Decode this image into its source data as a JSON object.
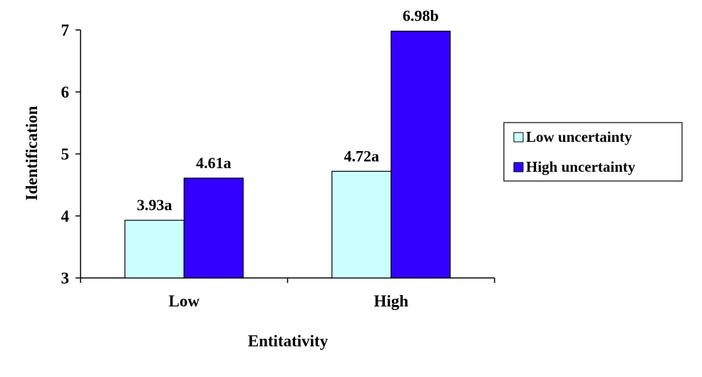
{
  "chart_data": {
    "type": "bar",
    "xlabel": "Entitativity",
    "ylabel": "Identification",
    "categories": [
      "Low",
      "High"
    ],
    "ylim": [
      3,
      7
    ],
    "yticks": [
      3,
      4,
      5,
      6,
      7
    ],
    "grid": false,
    "legend_position": "right",
    "series": [
      {
        "name": "Low uncertainty",
        "color": "#ccffff",
        "values": [
          3.93,
          4.72
        ],
        "labels": [
          "3.93a",
          "4.72a"
        ]
      },
      {
        "name": "High uncertainty",
        "color": "#3300ff",
        "values": [
          4.61,
          6.98
        ],
        "labels": [
          "4.61a",
          "6.98b"
        ]
      }
    ]
  }
}
